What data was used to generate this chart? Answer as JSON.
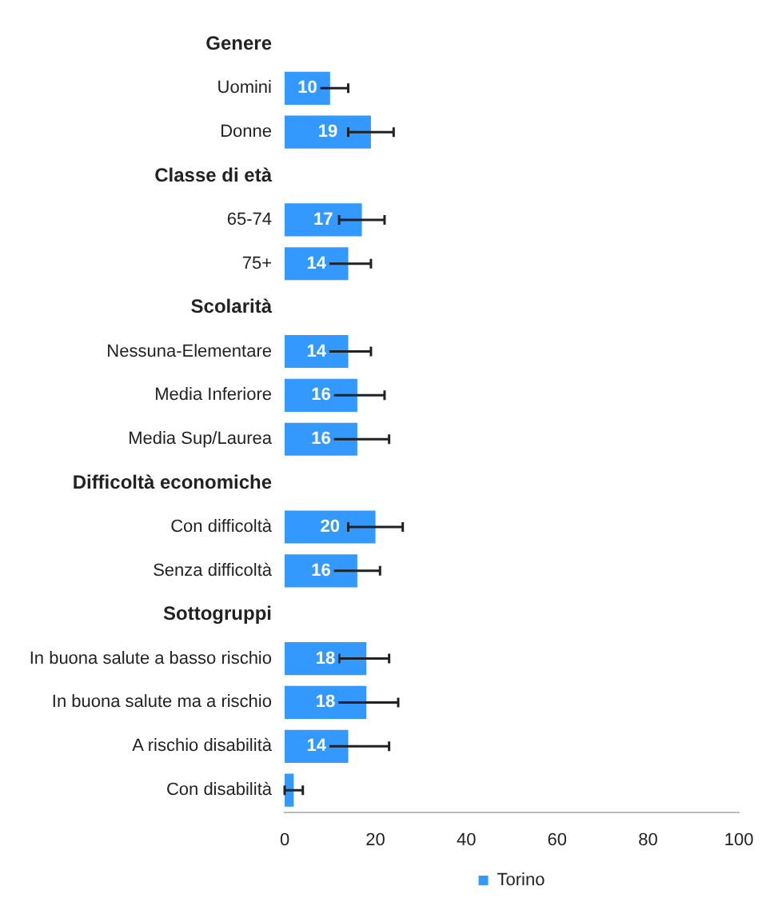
{
  "chart_data": {
    "type": "bar",
    "orientation": "horizontal",
    "categories": [
      "Genere",
      "Uomini",
      "Donne",
      "Classe di età",
      "65-74",
      "75+",
      "Scolarità",
      "Nessuna-Elementare",
      "Media Inferiore",
      "Media Sup/Laurea",
      "Difficoltà economiche",
      "Con difficoltà",
      "Senza difficoltà",
      "Sottogruppi",
      "In buona salute a basso rischio",
      "In buona salute ma a rischio",
      "A rischio disabilità",
      "Con disabilità"
    ],
    "series": [
      {
        "name": "Torino",
        "color": "#3399ff",
        "values": [
          null,
          10,
          19,
          null,
          17,
          14,
          null,
          14,
          16,
          16,
          null,
          20,
          16,
          null,
          18,
          18,
          14,
          2
        ],
        "errors": [
          null,
          [
            5,
            14
          ],
          [
            14,
            24
          ],
          null,
          [
            12,
            22
          ],
          [
            9,
            19
          ],
          null,
          [
            9,
            19
          ],
          [
            10,
            22
          ],
          [
            10,
            23
          ],
          null,
          [
            14,
            26
          ],
          [
            10,
            21
          ],
          null,
          [
            12,
            23
          ],
          [
            11,
            25
          ],
          [
            5,
            23
          ],
          [
            0,
            4
          ]
        ],
        "value_labels": [
          null,
          "10",
          "19",
          null,
          "17",
          "14",
          null,
          "14",
          "16",
          "16",
          null,
          "20",
          "16",
          null,
          "18",
          "18",
          "14",
          null
        ]
      }
    ],
    "xlim": [
      0,
      100
    ],
    "xticks": [
      0,
      20,
      40,
      60,
      80,
      100
    ],
    "grid": false,
    "legend": "bottom"
  }
}
